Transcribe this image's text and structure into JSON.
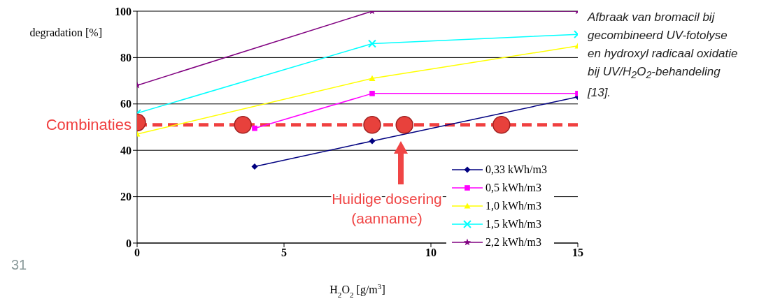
{
  "chart_data": {
    "type": "line",
    "xlabel": "H$_{2}$O$_{2}$ [g/m$^{3}$]",
    "ylabel": "degradation [%]",
    "xlim": [
      0,
      15
    ],
    "xticks": [
      0,
      5,
      10,
      15
    ],
    "ylim": [
      0,
      100
    ],
    "yticks": [
      0,
      20,
      40,
      60,
      80,
      100
    ],
    "grid": "y",
    "legend": "bottom right",
    "line_style": "solid",
    "series": [
      {
        "name": "0,33 kWh/m3",
        "color": "#000080",
        "marker": "diamond",
        "x": [
          4,
          8,
          15
        ],
        "values": [
          33,
          44,
          63
        ]
      },
      {
        "name": "0,5 kWh/m3",
        "color": "#ff00ff",
        "marker": "square",
        "x": [
          4,
          8,
          15
        ],
        "values": [
          49.5,
          64.5,
          64.5
        ]
      },
      {
        "name": "1,0 kWh/m3",
        "color": "#ffff00",
        "marker": "triangle",
        "x": [
          0,
          8,
          15
        ],
        "values": [
          47,
          71,
          85
        ]
      },
      {
        "name": "1,5 kWh/m3",
        "color": "#00ffff",
        "marker": "cross",
        "x": [
          0,
          8,
          15
        ],
        "values": [
          56,
          86,
          90
        ]
      },
      {
        "name": "2,2 kWh/m3",
        "color": "#800080",
        "marker": "star",
        "x": [
          0,
          8,
          15
        ],
        "values": [
          68,
          100,
          100
        ]
      },
      {
        "type": "scatter",
        "color": "#e8413c",
        "marker": "circle",
        "x": [
          0,
          3.6,
          8,
          9.1,
          12.4
        ],
        "values": [
          52,
          51,
          51,
          51,
          51
        ]
      }
    ],
    "ref_lines": [
      {
        "axis": "y",
        "value": 51,
        "label": "Combinaties",
        "color": "#f04040",
        "line_style": "dashed"
      }
    ],
    "annotations": [
      "Afbraak van bromacil bij gecombineerd UV-fotolyse en hydroxyl radicaal oxidatie bij UV/H$_{2}$O$_{2}$-behandeling [13].",
      "31",
      "Huidige dosering (aanname)"
    ]
  }
}
